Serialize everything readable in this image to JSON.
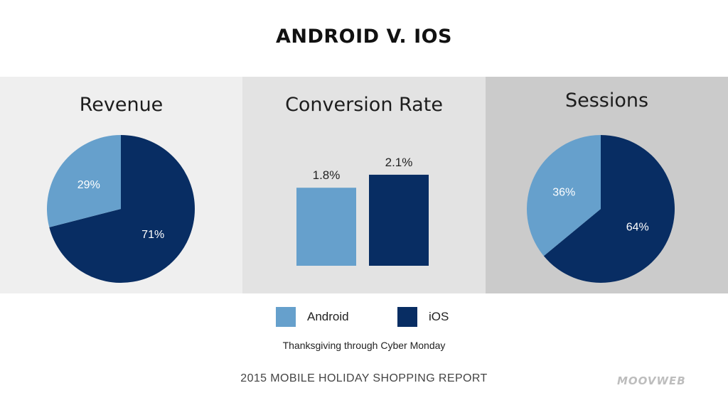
{
  "title": "ANDROID V. IOS",
  "colors": {
    "android": "#66a0cc",
    "ios": "#082d63"
  },
  "legend": [
    {
      "label": "Android",
      "color": "#66a0cc"
    },
    {
      "label": "iOS",
      "color": "#082d63"
    }
  ],
  "subtitle": "Thanksgiving through Cyber Monday",
  "footer": {
    "report": "2015 MOBILE HOLIDAY SHOPPING REPORT",
    "logo": "MOOVWEB"
  },
  "chart_data": [
    {
      "type": "pie",
      "title": "Revenue",
      "slices": [
        {
          "name": "iOS",
          "value": 71,
          "label": "71%"
        },
        {
          "name": "Android",
          "value": 29,
          "label": "29%"
        }
      ]
    },
    {
      "type": "bar",
      "title": "Conversion Rate",
      "categories": [
        "Android",
        "iOS"
      ],
      "values": [
        1.8,
        2.1
      ],
      "labels": [
        "1.8%",
        "2.1%"
      ]
    },
    {
      "type": "pie",
      "title": "Sessions",
      "slices": [
        {
          "name": "iOS",
          "value": 64,
          "label": "64%"
        },
        {
          "name": "Android",
          "value": 36,
          "label": "36%"
        }
      ]
    }
  ]
}
